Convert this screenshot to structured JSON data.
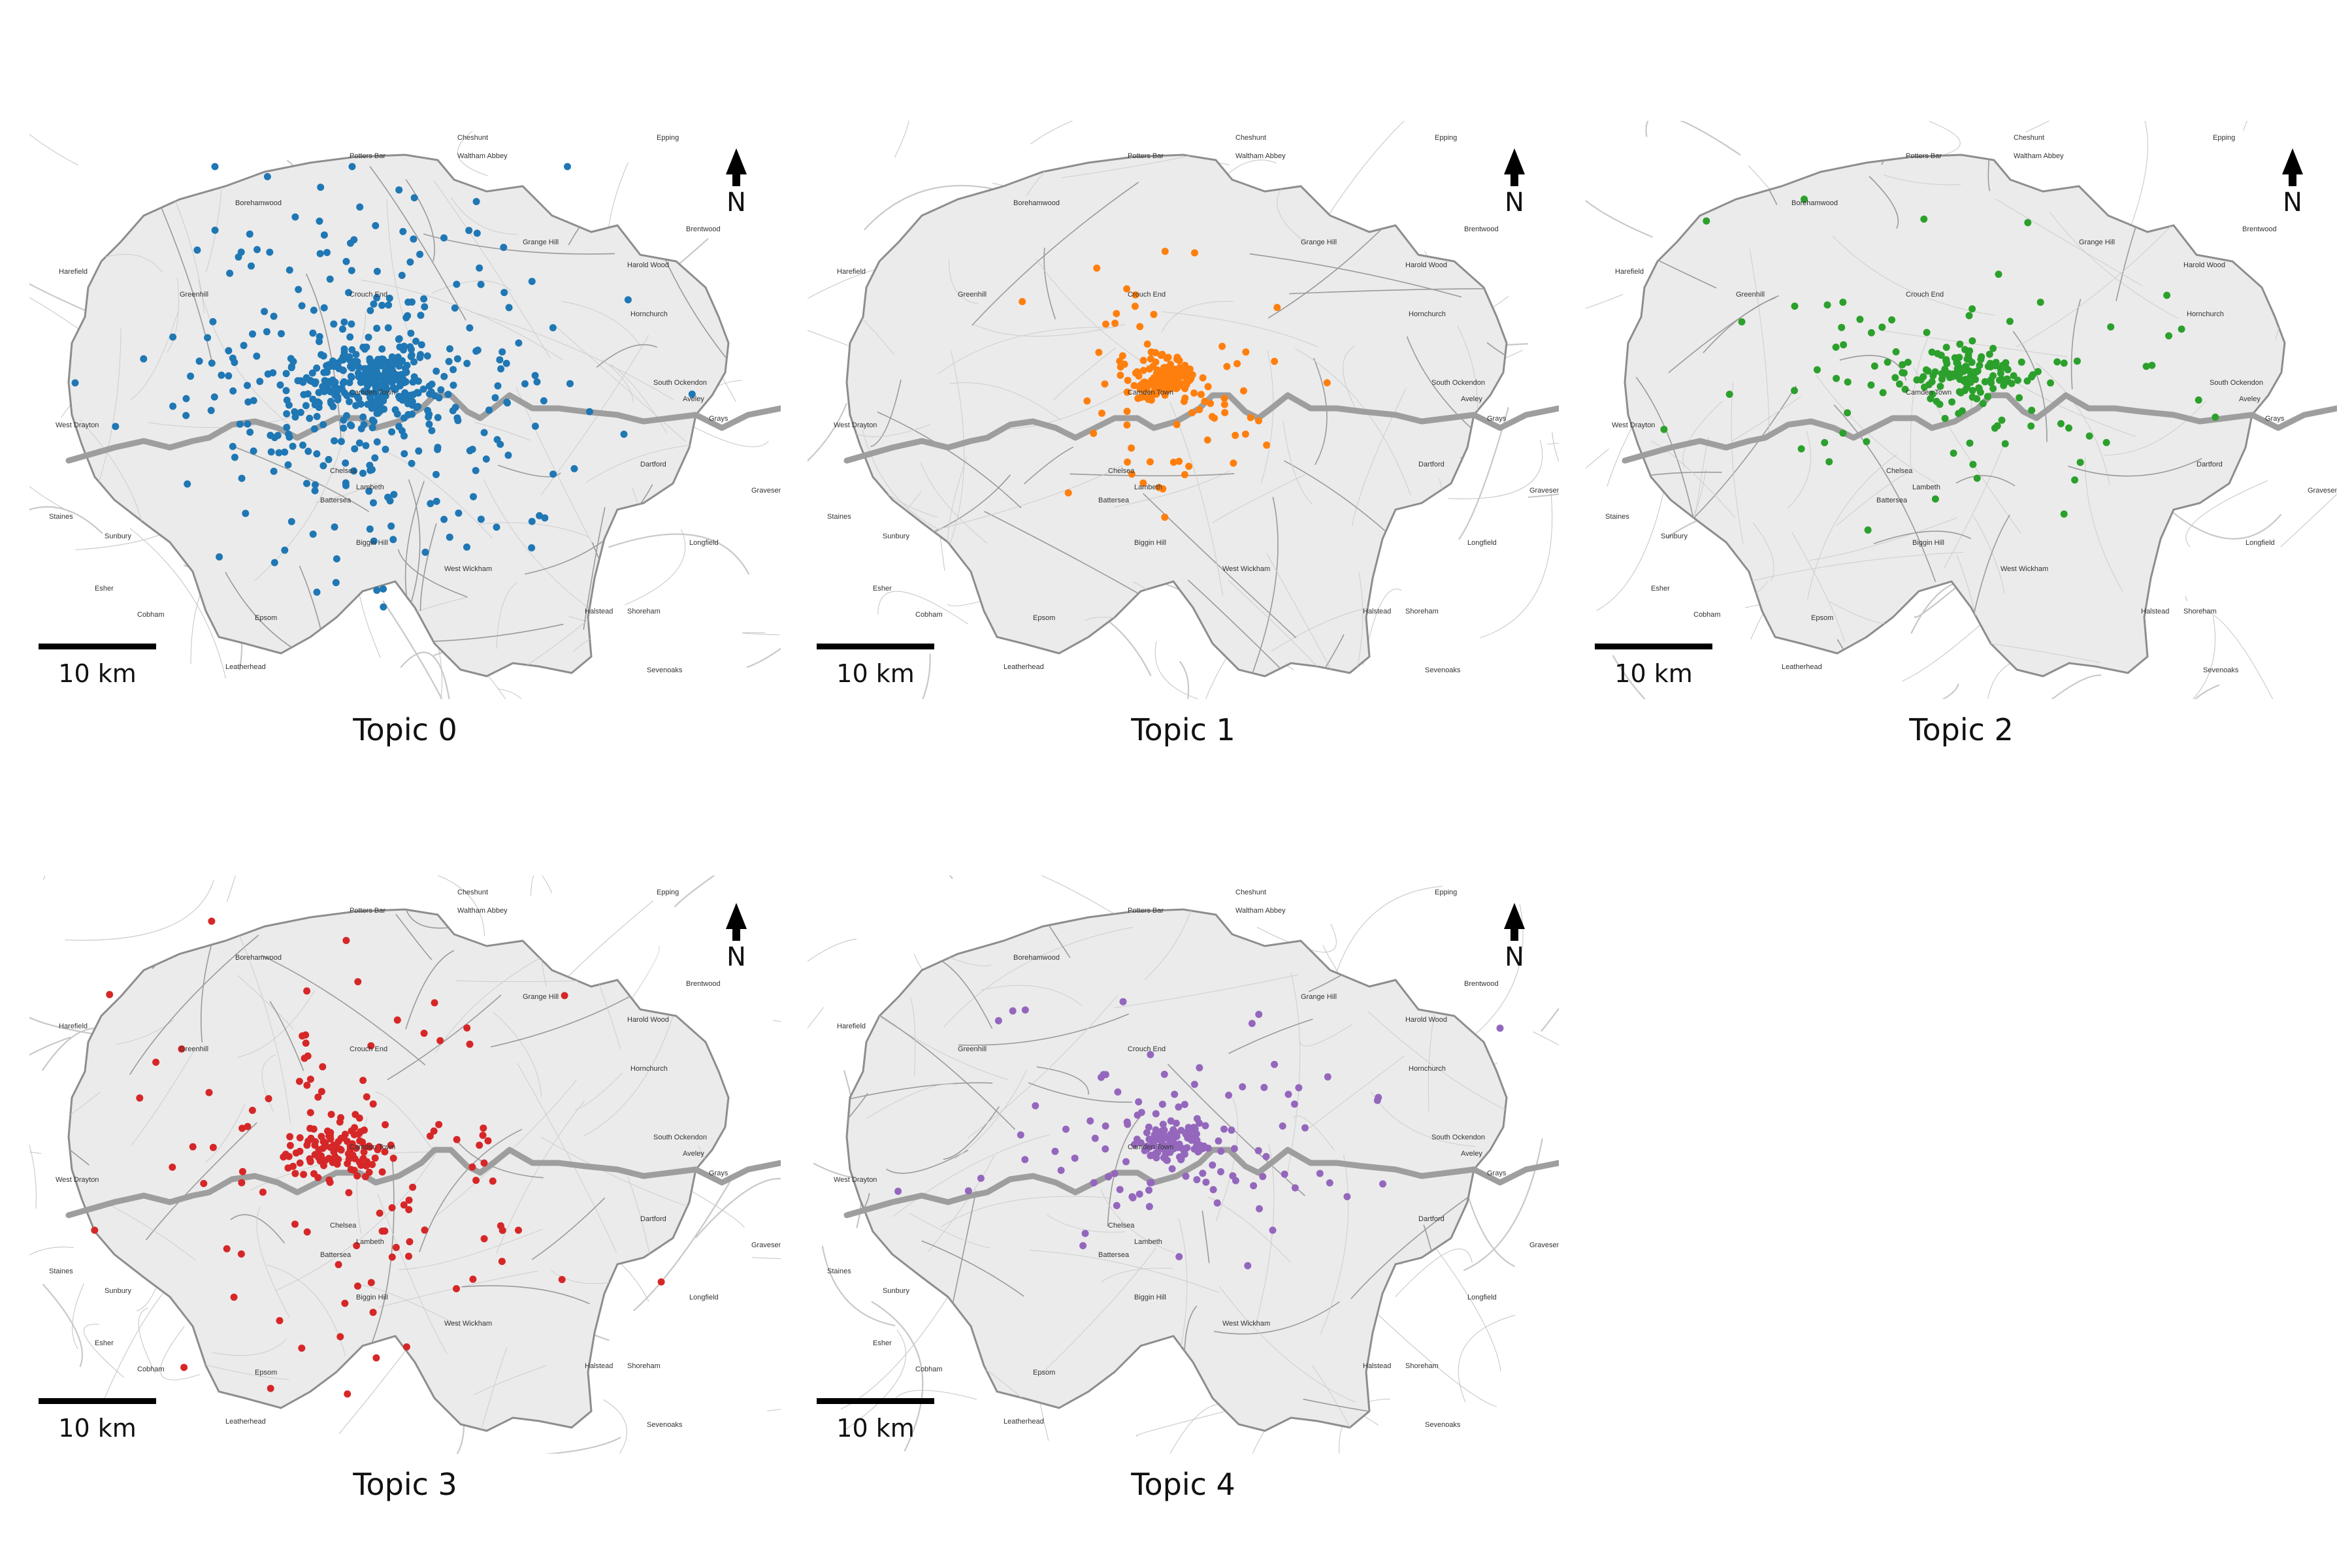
{
  "colors": {
    "topic_0": "#1f77b4",
    "topic_1": "#ff7f0e",
    "topic_2": "#2ca02c",
    "topic_3": "#d62728",
    "topic_4": "#9467bd",
    "london_fill": "#ebebeb",
    "river": "#9e9e9e",
    "roads": "#c8c8c8"
  },
  "north_label": "N",
  "scale_label": "10 km",
  "places": [
    "Cheshunt",
    "Epping",
    "Potters Bar",
    "Waltham Abbey",
    "Borehamwood",
    "Grange Hill",
    "Brentwood",
    "Harefield",
    "Greenhill",
    "Crouch End",
    "Harold Wood",
    "Hornchurch",
    "Camden Town",
    "South Ockendon",
    "Aveley",
    "Grays",
    "West Drayton",
    "Chelsea",
    "Lambeth",
    "Battersea",
    "Dartford",
    "Staines",
    "Gravesend",
    "Sunbury",
    "Biggin Hill",
    "Longfield",
    "West Wickham",
    "Esher",
    "Cobham",
    "Epsom",
    "Halstead",
    "Shoreham",
    "Leatherhead",
    "Sevenoaks"
  ],
  "panels": [
    {
      "id": "topic-0",
      "caption": "Topic 0",
      "color_key": "topic_0"
    },
    {
      "id": "topic-1",
      "caption": "Topic 1",
      "color_key": "topic_1"
    },
    {
      "id": "topic-2",
      "caption": "Topic 2",
      "color_key": "topic_2"
    },
    {
      "id": "topic-3",
      "caption": "Topic 3",
      "color_key": "topic_3"
    },
    {
      "id": "topic-4",
      "caption": "Topic 4",
      "color_key": "topic_4"
    }
  ]
}
